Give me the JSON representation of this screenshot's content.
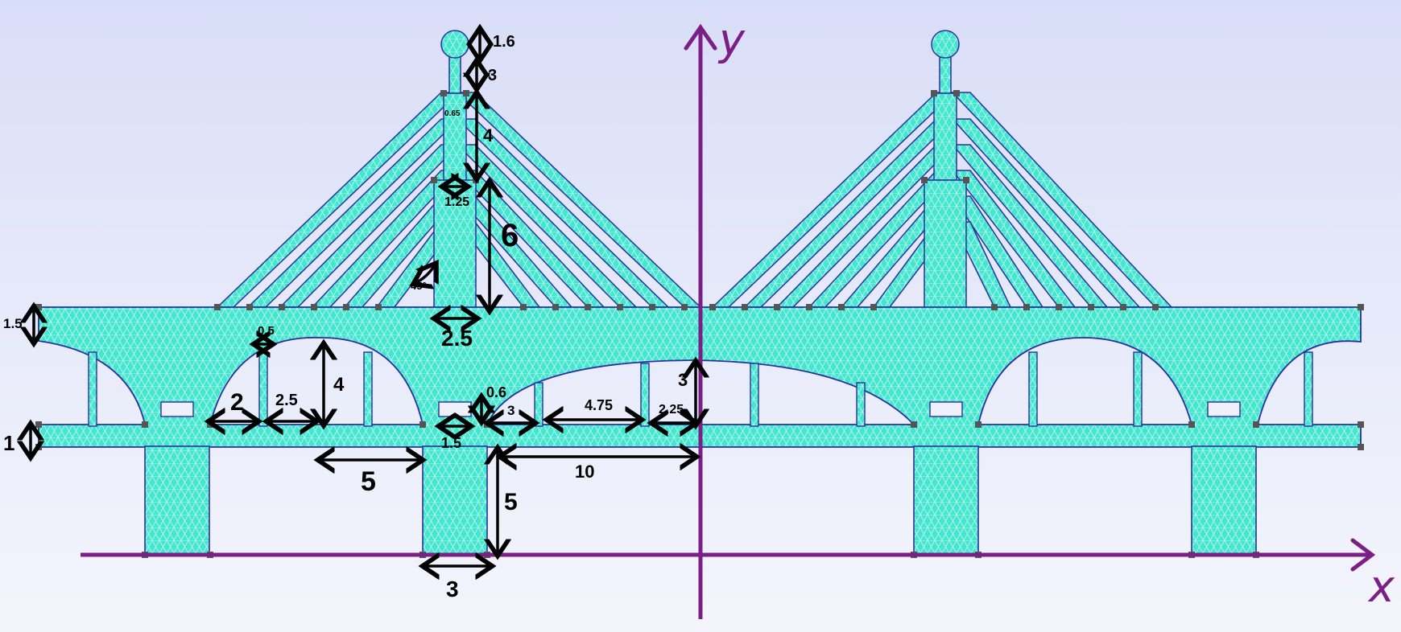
{
  "axes": {
    "x_label": "x",
    "y_label": "y"
  },
  "dimensions": {
    "d_1_6": "1.6",
    "d_3_mast": "3",
    "d_0_65": "0.65",
    "d_4": "4",
    "d_1_25": "1.25",
    "d_6": "6",
    "d_45deg": "45°",
    "d_1_5_deck": "1.5",
    "d_2_5_pier": "2.5",
    "d_0_5": "0.5",
    "d_4_arch": "4",
    "d_2": "2",
    "d_2_5": "2.5",
    "d_0_6": "0.6",
    "d_3_bay": "3",
    "d_4_75": "4.75",
    "d_2_25": "2.25",
    "d_3_arch": "3",
    "d_1_lower": "1",
    "d_1_5_win": "1.5",
    "d_5": "5",
    "d_10": "10",
    "d_5_height": "5",
    "d_3_base": "3"
  },
  "colors": {
    "mesh_fill": "#45e6cf",
    "mesh_line": "#b8f7ec",
    "outline": "#2b2f9e",
    "axis": "#7a1f86",
    "node": "#555555",
    "arrow": "#000000"
  }
}
